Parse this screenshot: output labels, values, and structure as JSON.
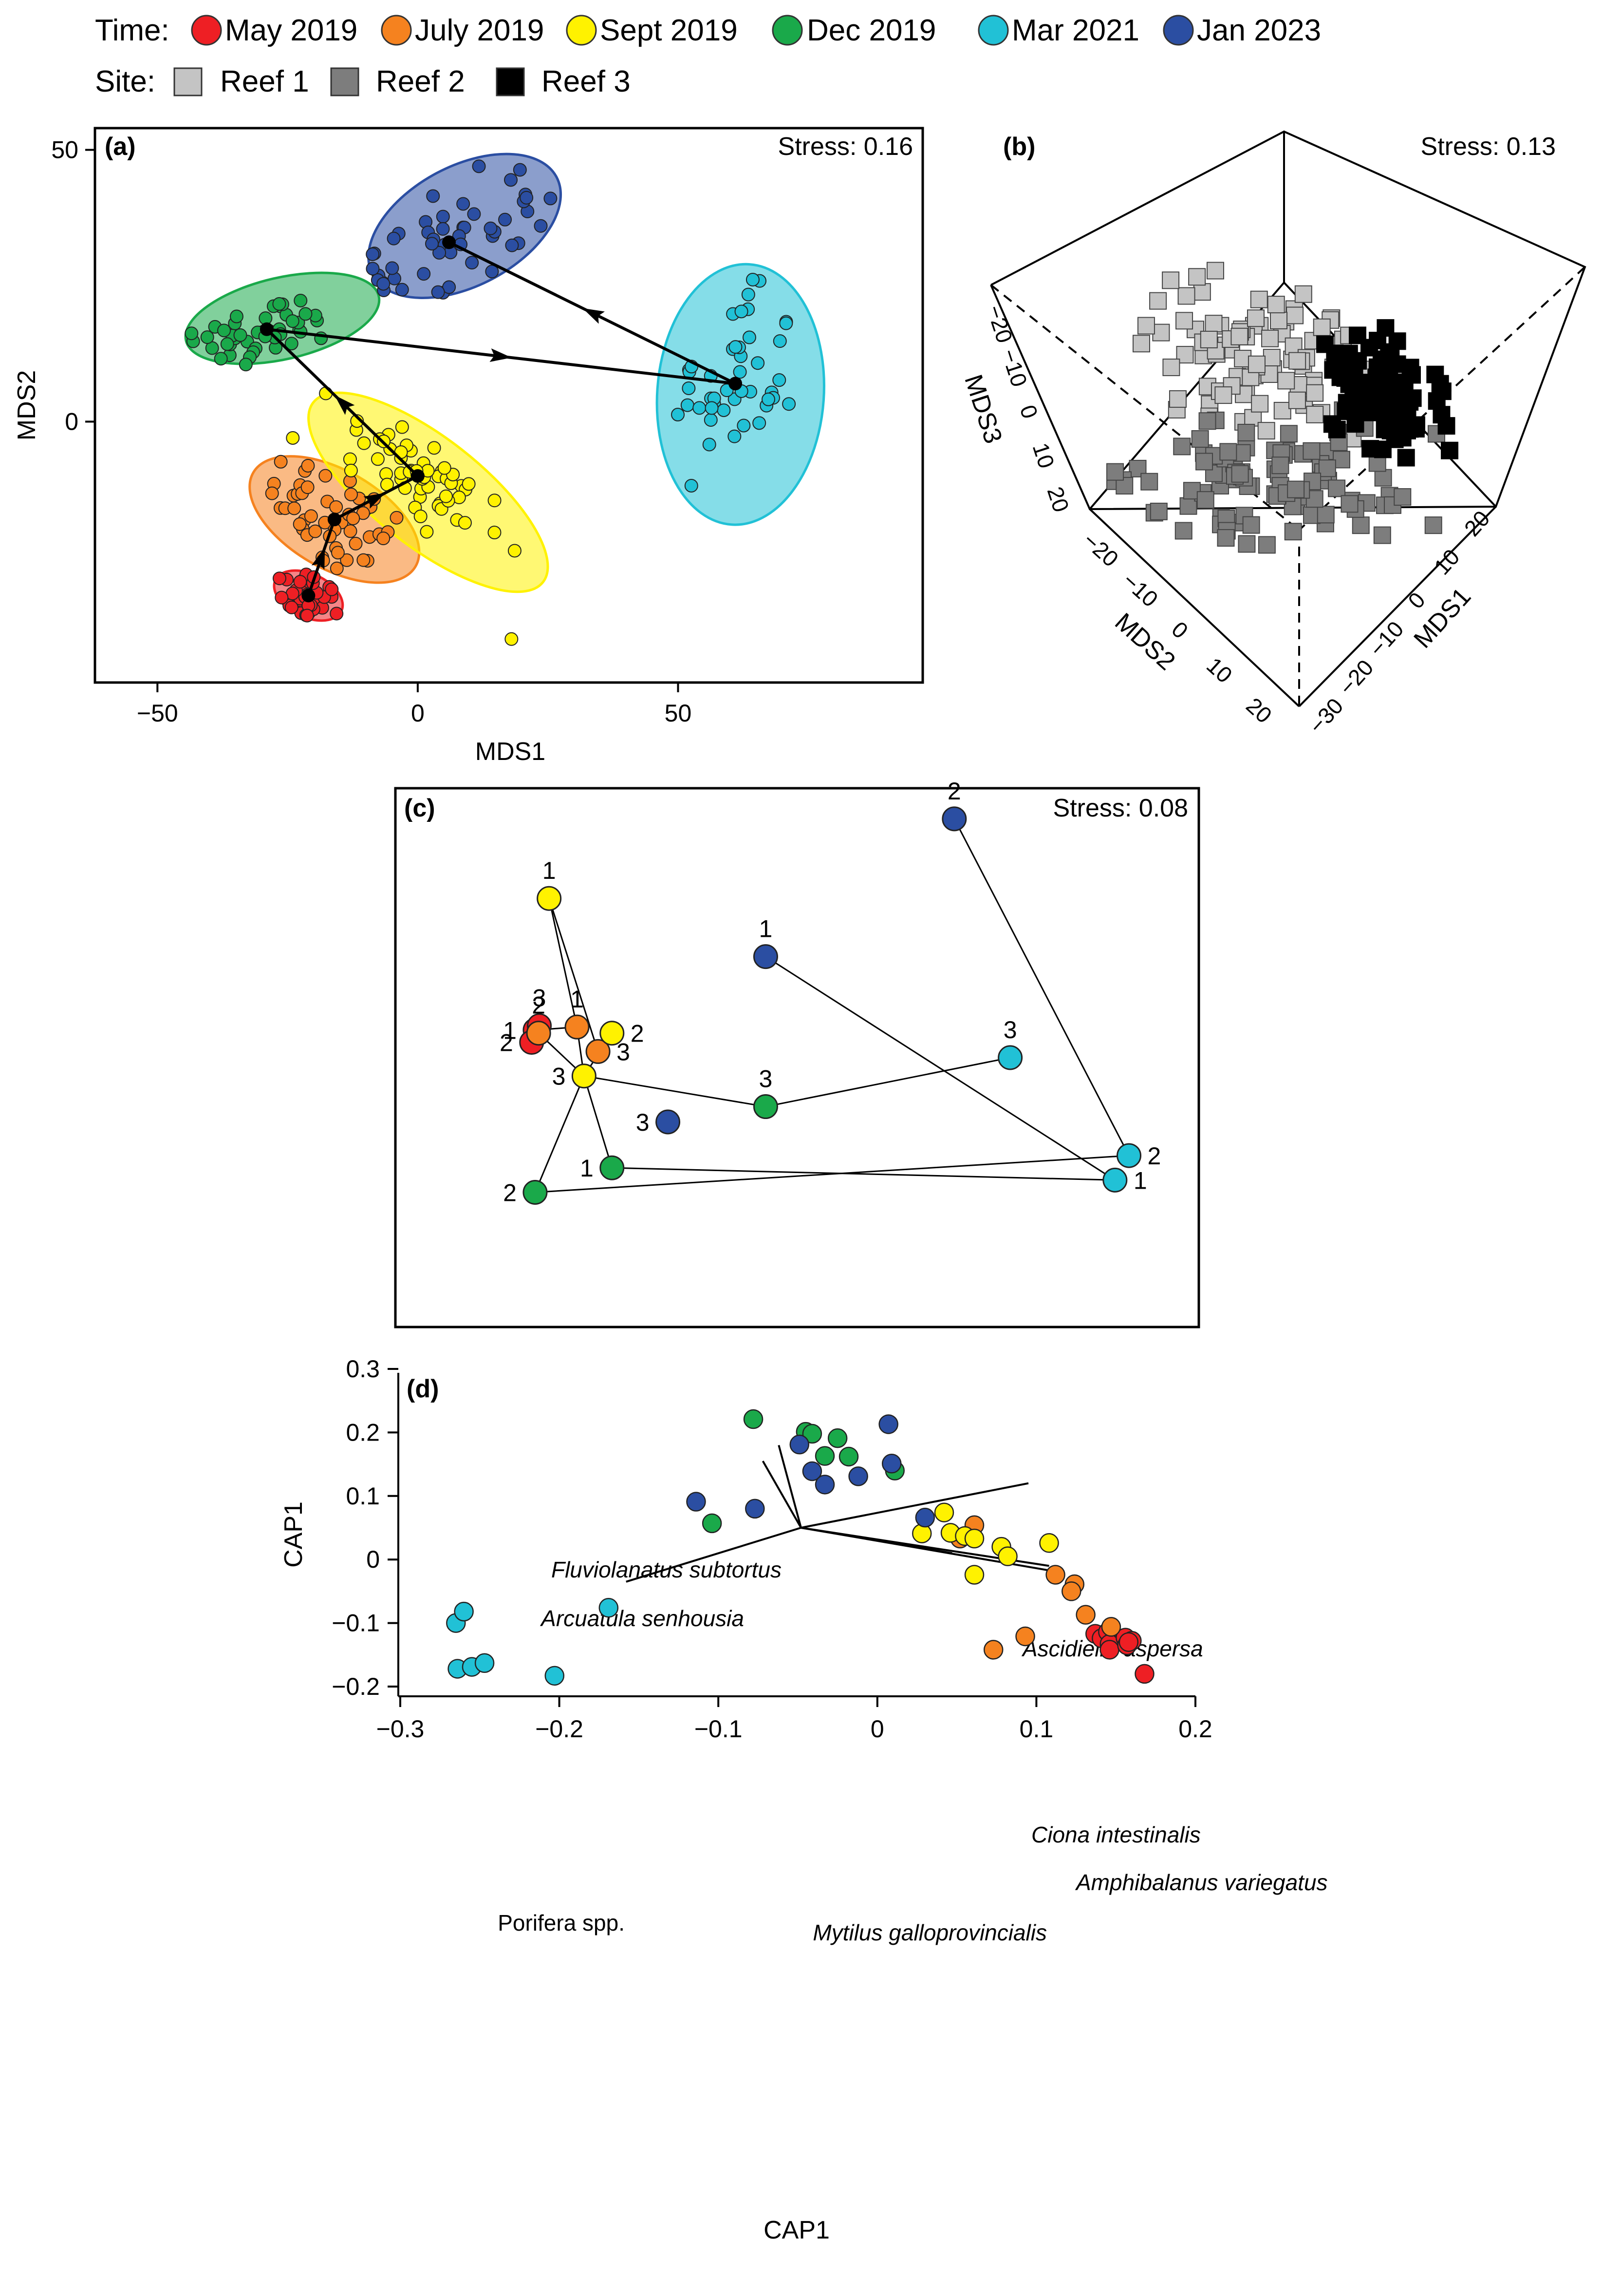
{
  "legend": {
    "time_label": "Time:",
    "site_label": "Site:",
    "time": [
      {
        "key": "may2019",
        "label": "May 2019",
        "color": "#ee1f24"
      },
      {
        "key": "jul2019",
        "label": "July 2019",
        "color": "#f5821f"
      },
      {
        "key": "sep2019",
        "label": "Sept 2019",
        "color": "#fff200"
      },
      {
        "key": "dec2019",
        "label": "Dec 2019",
        "color": "#1aa94a"
      },
      {
        "key": "mar2021",
        "label": "Mar 2021",
        "color": "#21c1d6"
      },
      {
        "key": "jan2023",
        "label": "Jan 2023",
        "color": "#2b4ea2"
      }
    ],
    "site": [
      {
        "label": "Reef 1",
        "color": "#c4c4c4"
      },
      {
        "label": "Reef 2",
        "color": "#7d7d7d"
      },
      {
        "label": "Reef 3",
        "color": "#000000"
      }
    ]
  },
  "chart_data": [
    {
      "panel": "(a)",
      "type": "scatter",
      "stress": "Stress: 0.16",
      "xlabel": "MDS1",
      "ylabel": "MDS2",
      "xlim": [
        -62,
        97
      ],
      "ylim": [
        -48,
        54
      ],
      "xticks": [
        "−50",
        "0",
        "50"
      ],
      "xtick_values": [
        -50,
        0,
        50
      ],
      "yticks": [
        "0",
        "50"
      ],
      "ytick_values": [
        0,
        50
      ],
      "groups": [
        {
          "time": "may2019",
          "centroid": [
            -21,
            -32
          ],
          "spread": [
            3.5,
            3
          ],
          "angle": -20,
          "n": 40,
          "ellipse": {
            "cx": -21,
            "cy": -32,
            "rx": 7,
            "ry": 4,
            "angle": -25
          }
        },
        {
          "time": "jul2019",
          "centroid": [
            -16,
            -18
          ],
          "spread": [
            7,
            5
          ],
          "angle": -30,
          "n": 50,
          "ellipse": {
            "cx": -16,
            "cy": -18,
            "rx": 18,
            "ry": 9,
            "angle": -30
          }
        },
        {
          "time": "sep2019",
          "centroid": [
            0,
            -10
          ],
          "spread": [
            10,
            4.5
          ],
          "angle": -38,
          "n": 55,
          "ellipse": {
            "cx": 2,
            "cy": -13,
            "rx": 28,
            "ry": 10,
            "angle": -38
          }
        },
        {
          "time": "dec2019",
          "centroid": [
            -29,
            17
          ],
          "spread": [
            7,
            3
          ],
          "angle": 12,
          "n": 45,
          "ellipse": {
            "cx": -26,
            "cy": 19,
            "rx": 19,
            "ry": 7.5,
            "angle": 13
          }
        },
        {
          "time": "mar2021",
          "centroid": [
            61,
            7
          ],
          "spread": [
            6,
            10
          ],
          "angle": 0,
          "n": 45,
          "ellipse": {
            "cx": 62,
            "cy": 5,
            "rx": 16,
            "ry": 24,
            "angle": -4
          }
        },
        {
          "time": "jan2023",
          "centroid": [
            6,
            33
          ],
          "spread": [
            10,
            6
          ],
          "angle": 25,
          "n": 50,
          "ellipse": {
            "cx": 9,
            "cy": 36,
            "rx": 20,
            "ry": 11,
            "angle": 28
          }
        }
      ],
      "outliers": [
        [
          18,
          -40
        ],
        [
          -24,
          -3
        ],
        [
          -3,
          -1
        ]
      ],
      "trajectory": [
        [
          -21,
          -32
        ],
        [
          -16,
          -18
        ],
        [
          0,
          -10
        ],
        [
          -29,
          17
        ],
        [
          61,
          7
        ],
        [
          6,
          33
        ]
      ]
    },
    {
      "panel": "(b)",
      "type": "scatter",
      "projection": "3d",
      "stress": "Stress: 0.13",
      "axes": [
        "MDS1",
        "MDS2",
        "MDS3"
      ],
      "mds1_ticks": [
        "20",
        "10",
        "0",
        "−10",
        "−20",
        "−30"
      ],
      "mds2_ticks": [
        "−20",
        "−10",
        "0",
        "10",
        "20"
      ],
      "mds3_ticks": [
        "−20",
        "−10",
        "0",
        "10",
        "20"
      ],
      "series": [
        {
          "name": "Reef 1",
          "color": "#c4c4c4",
          "n": 90
        },
        {
          "name": "Reef 2",
          "color": "#7d7d7d",
          "n": 100
        },
        {
          "name": "Reef 3",
          "color": "#000000",
          "n": 90
        }
      ]
    },
    {
      "panel": "(c)",
      "type": "scatter",
      "stress": "Stress: 0.08",
      "xlim": [
        -1.5,
        10
      ],
      "ylim": [
        -2.4,
        6.4
      ],
      "points": [
        {
          "time": "may2019",
          "site": "1",
          "x": 0.5,
          "y": 2.45,
          "label": "1",
          "label_side": "left"
        },
        {
          "time": "may2019",
          "site": "2",
          "x": 0.45,
          "y": 2.25,
          "label": "2",
          "label_side": "left"
        },
        {
          "time": "may2019",
          "site": "3",
          "x": 0.56,
          "y": 2.52,
          "label": "3",
          "label_side": "top"
        },
        {
          "time": "jul2019",
          "site": "1",
          "x": 1.1,
          "y": 2.5,
          "label": "1",
          "label_side": "top"
        },
        {
          "time": "jul2019",
          "site": "2",
          "x": 0.55,
          "y": 2.4,
          "label": "2",
          "label_side": "top"
        },
        {
          "time": "jul2019",
          "site": "3",
          "x": 1.4,
          "y": 2.1,
          "label": "3",
          "label_side": "right"
        },
        {
          "time": "sep2019",
          "site": "1",
          "x": 0.7,
          "y": 4.6,
          "label": "1",
          "label_side": "top"
        },
        {
          "time": "sep2019",
          "site": "2",
          "x": 1.6,
          "y": 2.4,
          "label": "2",
          "label_side": "right"
        },
        {
          "time": "sep2019",
          "site": "3",
          "x": 1.2,
          "y": 1.7,
          "label": "3",
          "label_side": "left"
        },
        {
          "time": "dec2019",
          "site": "1",
          "x": 1.6,
          "y": 0.2,
          "label": "1",
          "label_side": "left"
        },
        {
          "time": "dec2019",
          "site": "2",
          "x": 0.5,
          "y": -0.2,
          "label": "2",
          "label_side": "left"
        },
        {
          "time": "dec2019",
          "site": "3",
          "x": 3.8,
          "y": 1.2,
          "label": "3",
          "label_side": "top"
        },
        {
          "time": "mar2021",
          "site": "1",
          "x": 8.8,
          "y": 0.0,
          "label": "1",
          "label_side": "right"
        },
        {
          "time": "mar2021",
          "site": "2",
          "x": 9.0,
          "y": 0.4,
          "label": "2",
          "label_side": "right"
        },
        {
          "time": "mar2021",
          "site": "3",
          "x": 7.3,
          "y": 2.0,
          "label": "3",
          "label_side": "top"
        },
        {
          "time": "jan2023",
          "site": "1",
          "x": 3.8,
          "y": 3.65,
          "label": "1",
          "label_side": "top"
        },
        {
          "time": "jan2023",
          "site": "2",
          "x": 6.5,
          "y": 5.9,
          "label": "2",
          "label_side": "top"
        },
        {
          "time": "jan2023",
          "site": "3",
          "x": 2.4,
          "y": 0.95,
          "label": "3",
          "label_side": "left"
        }
      ],
      "segments": [
        [
          "sep2019-1",
          "jul2019-3"
        ],
        [
          "sep2019-1",
          "jul2019-1"
        ],
        [
          "jul2019-1",
          "sep2019-3"
        ],
        [
          "sep2019-2",
          "sep2019-3"
        ],
        [
          "sep2019-3",
          "dec2019-2"
        ],
        [
          "sep2019-3",
          "dec2019-1"
        ],
        [
          "sep2019-3",
          "dec2019-3"
        ],
        [
          "dec2019-3",
          "mar2021-3"
        ],
        [
          "dec2019-2",
          "mar2021-2"
        ],
        [
          "dec2019-1",
          "mar2021-1"
        ],
        [
          "mar2021-2",
          "jan2023-2"
        ],
        [
          "mar2021-1",
          "jan2023-1"
        ],
        [
          "jul2019-2",
          "sep2019-3"
        ],
        [
          "may2019-1",
          "jul2019-1"
        ]
      ]
    },
    {
      "panel": "(d)",
      "type": "scatter",
      "xlabel": "CAP1",
      "ylabel": "CAP1",
      "xlim": [
        -0.3,
        0.2
      ],
      "ylim": [
        -0.2,
        0.3
      ],
      "xticks": [
        "−0.3",
        "−0.2",
        "−0.1",
        "0",
        "0.1",
        "0.2"
      ],
      "xtick_values": [
        -0.3,
        -0.2,
        -0.1,
        0,
        0.1,
        0.2
      ],
      "yticks": [
        "−0.2",
        "−0.1",
        "0",
        "0.1",
        "0.2",
        "0.3"
      ],
      "ytick_values": [
        -0.2,
        -0.1,
        0,
        0.1,
        0.2,
        0.3
      ],
      "vector_origin": [
        -0.048,
        0.05
      ],
      "vectors": [
        {
          "label": "Fluviolanatus subtortus",
          "italic": true,
          "end": [
            -0.062,
            0.18
          ]
        },
        {
          "label": "Arcuatula senhousia",
          "italic": true,
          "end": [
            -0.072,
            0.155
          ]
        },
        {
          "label": "Ascidiella aspersa",
          "italic": true,
          "end": [
            0.095,
            0.12
          ]
        },
        {
          "label": "Ciona intestinalis",
          "italic": true,
          "end": [
            0.047,
            0.01
          ]
        },
        {
          "label": "Amphibalanus variegatus",
          "italic": true,
          "end": [
            0.108,
            -0.01
          ]
        },
        {
          "label": "Mytilus galloprovincialis",
          "italic": true,
          "end": [
            0.11,
            -0.018
          ]
        },
        {
          "label": "Porifera spp.",
          "italic": false,
          "end": [
            -0.158,
            -0.035
          ]
        }
      ],
      "points": [
        {
          "time": "may2019",
          "x": 0.137,
          "y": -0.117
        },
        {
          "time": "may2019",
          "x": 0.141,
          "y": -0.124
        },
        {
          "time": "may2019",
          "x": 0.145,
          "y": -0.114
        },
        {
          "time": "may2019",
          "x": 0.146,
          "y": -0.133
        },
        {
          "time": "may2019",
          "x": 0.146,
          "y": -0.142
        },
        {
          "time": "may2019",
          "x": 0.156,
          "y": -0.123
        },
        {
          "time": "may2019",
          "x": 0.157,
          "y": -0.135
        },
        {
          "time": "may2019",
          "x": 0.16,
          "y": -0.128
        },
        {
          "time": "may2019",
          "x": 0.158,
          "y": -0.13
        },
        {
          "time": "may2019",
          "x": 0.168,
          "y": -0.18
        },
        {
          "time": "jul2019",
          "x": 0.061,
          "y": 0.054
        },
        {
          "time": "jul2019",
          "x": 0.052,
          "y": 0.033
        },
        {
          "time": "jul2019",
          "x": 0.112,
          "y": -0.024
        },
        {
          "time": "jul2019",
          "x": 0.124,
          "y": -0.039
        },
        {
          "time": "jul2019",
          "x": 0.122,
          "y": -0.05
        },
        {
          "time": "jul2019",
          "x": 0.131,
          "y": -0.087
        },
        {
          "time": "jul2019",
          "x": 0.147,
          "y": -0.106
        },
        {
          "time": "jul2019",
          "x": 0.093,
          "y": -0.121
        },
        {
          "time": "jul2019",
          "x": 0.073,
          "y": -0.142
        },
        {
          "time": "sep2019",
          "x": 0.042,
          "y": 0.074
        },
        {
          "time": "sep2019",
          "x": 0.028,
          "y": 0.041
        },
        {
          "time": "sep2019",
          "x": 0.046,
          "y": 0.042
        },
        {
          "time": "sep2019",
          "x": 0.055,
          "y": 0.037
        },
        {
          "time": "sep2019",
          "x": 0.061,
          "y": 0.033
        },
        {
          "time": "sep2019",
          "x": 0.078,
          "y": 0.02
        },
        {
          "time": "sep2019",
          "x": 0.108,
          "y": 0.026
        },
        {
          "time": "sep2019",
          "x": 0.082,
          "y": 0.005
        },
        {
          "time": "sep2019",
          "x": 0.061,
          "y": -0.024
        },
        {
          "time": "dec2019",
          "x": -0.078,
          "y": 0.221
        },
        {
          "time": "dec2019",
          "x": -0.045,
          "y": 0.201
        },
        {
          "time": "dec2019",
          "x": -0.041,
          "y": 0.198
        },
        {
          "time": "dec2019",
          "x": -0.025,
          "y": 0.191
        },
        {
          "time": "dec2019",
          "x": -0.033,
          "y": 0.163
        },
        {
          "time": "dec2019",
          "x": -0.018,
          "y": 0.162
        },
        {
          "time": "dec2019",
          "x": 0.011,
          "y": 0.14
        },
        {
          "time": "dec2019",
          "x": -0.104,
          "y": 0.057
        },
        {
          "time": "mar2021",
          "x": -0.265,
          "y": -0.1
        },
        {
          "time": "mar2021",
          "x": -0.26,
          "y": -0.082
        },
        {
          "time": "mar2021",
          "x": -0.264,
          "y": -0.172
        },
        {
          "time": "mar2021",
          "x": -0.255,
          "y": -0.169
        },
        {
          "time": "mar2021",
          "x": -0.247,
          "y": -0.163
        },
        {
          "time": "mar2021",
          "x": -0.203,
          "y": -0.183
        },
        {
          "time": "mar2021",
          "x": -0.169,
          "y": -0.076
        },
        {
          "time": "jan2023",
          "x": 0.007,
          "y": 0.213
        },
        {
          "time": "jan2023",
          "x": -0.049,
          "y": 0.181
        },
        {
          "time": "jan2023",
          "x": -0.041,
          "y": 0.139
        },
        {
          "time": "jan2023",
          "x": -0.012,
          "y": 0.131
        },
        {
          "time": "jan2023",
          "x": -0.033,
          "y": 0.118
        },
        {
          "time": "jan2023",
          "x": 0.009,
          "y": 0.151
        },
        {
          "time": "jan2023",
          "x": -0.114,
          "y": 0.091
        },
        {
          "time": "jan2023",
          "x": -0.077,
          "y": 0.08
        },
        {
          "time": "jan2023",
          "x": 0.03,
          "y": 0.066
        }
      ]
    }
  ]
}
